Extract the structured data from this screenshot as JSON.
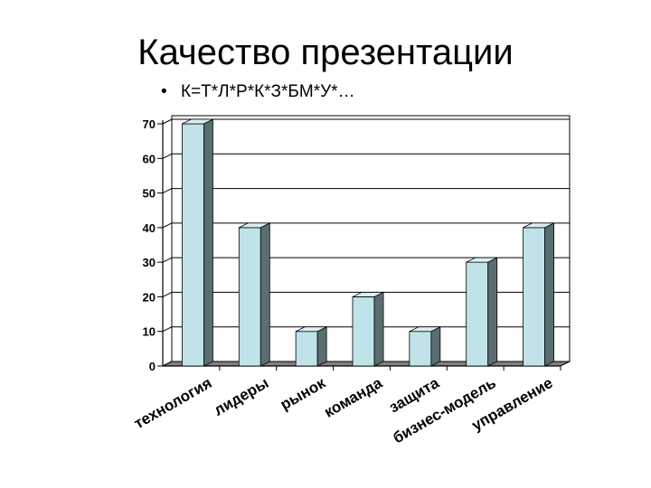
{
  "slide": {
    "title": "Качество презентации",
    "bullet": "К=Т*Л*Р*К*З*БМ*У*…",
    "bullet_marker": "•"
  },
  "chart_data": {
    "type": "bar",
    "title": "",
    "xlabel": "",
    "ylabel": "",
    "categories": [
      "технология",
      "лидеры",
      "рынок",
      "команда",
      "защита",
      "бизнес-модель",
      "управление"
    ],
    "values": [
      70,
      40,
      10,
      20,
      10,
      30,
      40
    ],
    "ylim": [
      0,
      70
    ],
    "yticks": [
      "0",
      "10",
      "20",
      "30",
      "40",
      "50",
      "60",
      "70"
    ],
    "grid": true,
    "three_d": true,
    "colors": {
      "bar_front": "#bfe3e8",
      "bar_side": "#5a6e72",
      "bar_top": "#dcefF2",
      "floor": "#7f7f7f",
      "grid": "#000000"
    }
  }
}
